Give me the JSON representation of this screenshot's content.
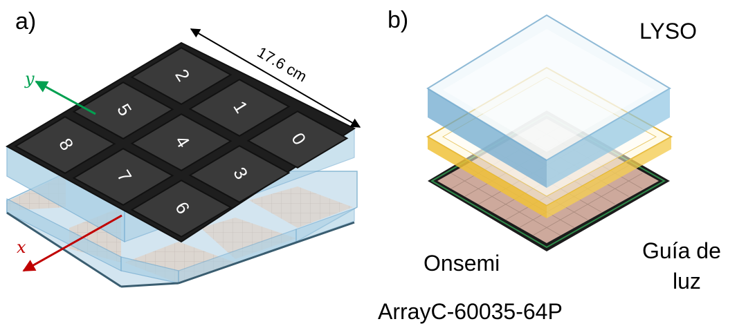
{
  "panel_a": {
    "label": "a)",
    "dimension_label": "17.6 cm",
    "axis_x": {
      "label": "x",
      "color": "#c00000"
    },
    "axis_y": {
      "label": "y",
      "color": "#00a050"
    },
    "tile_numbers": [
      "2",
      "5",
      "1",
      "8",
      "4",
      "0",
      "7",
      "3",
      "6"
    ],
    "colors": {
      "tile": "#3a3a3a",
      "glass": "#a9cfe4",
      "sensor": "#e3c9b6"
    }
  },
  "panel_b": {
    "label": "b)",
    "layers": {
      "top": "LYSO",
      "middle": "Guía de\nluz",
      "bottom_line1": "Onsemi",
      "bottom_line2": "ArrayC-60035-64P"
    },
    "middle_line1": "Guía de",
    "middle_line2": "luz",
    "colors": {
      "lyso": "#6fa9cf",
      "light_guide": "#f0c23a",
      "sensor": "#cda99c",
      "pcb_edge": "#2f8a4a"
    }
  }
}
